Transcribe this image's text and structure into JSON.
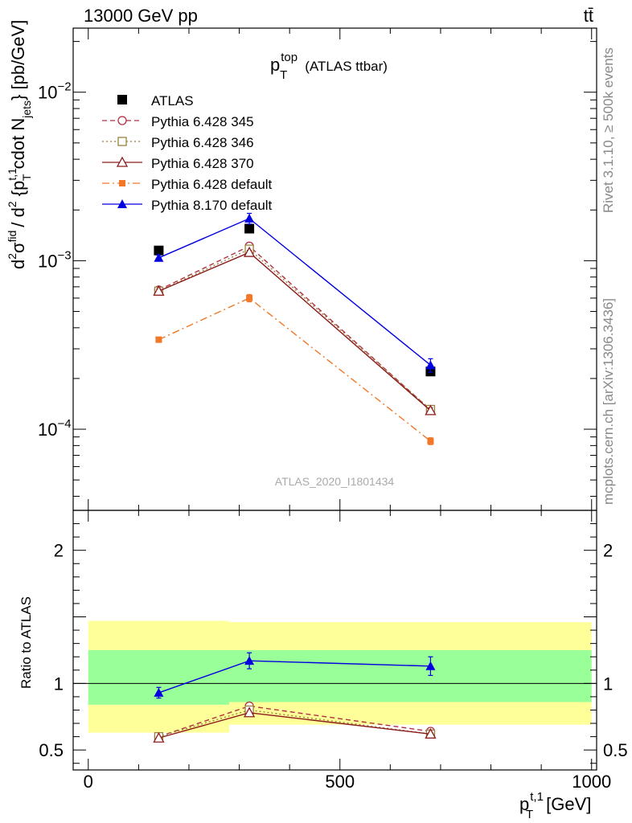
{
  "header": {
    "energy_label": "13000 GeV pp",
    "process_label": "tt̄"
  },
  "side_labels": {
    "rivet": "Rivet 3.1.10, ≥ 500k events",
    "site": "mcplots.cern.ch [arXiv:1306.3436]"
  },
  "chart_data": [
    {
      "type": "line",
      "panel": "main",
      "title": "p_T^top (ATLAS ttbar)",
      "title_main": "p",
      "title_sup": "top",
      "title_sub": "T",
      "title_rest": "(ATLAS ttbar)",
      "analysis_label": "ATLAS_2020_I1801434",
      "ylabel": "d²σ^fid / d² {p_T^t,1 cdot N_jets} [pb/GeV]",
      "yscale": "log",
      "xlim": [
        -30,
        1010
      ],
      "ylim": [
        3.3e-05,
        0.024
      ],
      "yticks": [
        0.0001,
        0.001,
        0.01
      ],
      "ytick_labels": [
        "10^-4",
        "10^-3",
        "10^-2"
      ],
      "ytick_label_parts": [
        {
          "base": "10",
          "exp": "−4"
        },
        {
          "base": "10",
          "exp": "−3"
        },
        {
          "base": "10",
          "exp": "−2"
        }
      ],
      "x": [
        140,
        320,
        680
      ],
      "series": [
        {
          "name": "ATLAS",
          "values": [
            0.00115,
            0.00155,
            0.00022
          ],
          "errors": [
            4e-05,
            5e-05,
            8e-06
          ],
          "color": "#000000",
          "marker": "filled-square",
          "line": "none"
        },
        {
          "name": "Pythia 6.428 345",
          "values": [
            0.00067,
            0.00122,
            0.00013
          ],
          "errors": [
            2e-05,
            3e-05,
            5e-06
          ],
          "color": "#b03040",
          "marker": "open-circle",
          "line": "dashed"
        },
        {
          "name": "Pythia 6.428 346",
          "values": [
            0.00066,
            0.00117,
            0.000131
          ],
          "errors": [
            2e-05,
            3e-05,
            5e-06
          ],
          "color": "#9a8040",
          "marker": "open-square",
          "line": "dotted"
        },
        {
          "name": "Pythia 6.428 370",
          "values": [
            0.00066,
            0.00112,
            0.000129
          ],
          "errors": [
            2e-05,
            3e-05,
            5e-06
          ],
          "color": "#8b1a1a",
          "marker": "open-triangle",
          "line": "solid"
        },
        {
          "name": "Pythia 6.428 default",
          "values": [
            0.00034,
            0.0006,
            8.5e-05
          ],
          "errors": [
            1e-05,
            3e-05,
            4e-06
          ],
          "color": "#f07828",
          "marker": "filled-square-small",
          "line": "dashdot"
        },
        {
          "name": "Pythia 8.170 default",
          "values": [
            0.00104,
            0.00178,
            0.00024
          ],
          "errors": [
            4e-05,
            0.00013,
            2.2e-05
          ],
          "color": "#0000e0",
          "marker": "filled-triangle",
          "line": "solid"
        }
      ],
      "legend_location": "top-left"
    },
    {
      "type": "line",
      "panel": "ratio",
      "ylabel": "Ratio to ATLAS",
      "xlabel": "p_T^t,1 [GeV]",
      "xlabel_main": "p",
      "xlabel_sup": "t,1",
      "xlabel_sub": "T",
      "xlabel_rest": "[GeV]",
      "xlim": [
        -30,
        1010
      ],
      "ylim": [
        0.35,
        2.3
      ],
      "xticks": [
        0,
        500,
        1000
      ],
      "xtick_labels": [
        "0",
        "500",
        "1000"
      ],
      "yticks": [
        0.5,
        1,
        2
      ],
      "ytick_labels": [
        "0.5",
        "1",
        "2"
      ],
      "bands": [
        {
          "x_range": [
            0,
            280
          ],
          "inner": [
            0.84,
            1.25
          ],
          "outer": [
            0.63,
            1.47
          ]
        },
        {
          "x_range": [
            280,
            1000
          ],
          "inner": [
            0.86,
            1.25
          ],
          "outer": [
            0.69,
            1.46
          ]
        }
      ],
      "x": [
        140,
        320,
        680
      ],
      "series": [
        {
          "name": "Pythia 6.428 345",
          "values": [
            0.6,
            0.83,
            0.64
          ],
          "errors": [
            0.01,
            0.01,
            0.01
          ],
          "color": "#b03040",
          "marker": "open-circle",
          "line": "dashed"
        },
        {
          "name": "Pythia 6.428 346",
          "values": [
            0.6,
            0.8,
            0.62
          ],
          "errors": [
            0.01,
            0.01,
            0.01
          ],
          "color": "#9a8040",
          "marker": "open-square",
          "line": "dotted"
        },
        {
          "name": "Pythia 6.428 370",
          "values": [
            0.59,
            0.78,
            0.62
          ],
          "errors": [
            0.01,
            0.01,
            0.01
          ],
          "color": "#8b1a1a",
          "marker": "open-triangle",
          "line": "solid"
        },
        {
          "name": "Pythia 8.170 default",
          "values": [
            0.93,
            1.17,
            1.13
          ],
          "errors": [
            0.04,
            0.06,
            0.07
          ],
          "color": "#0000e0",
          "marker": "filled-triangle",
          "line": "solid"
        }
      ]
    }
  ]
}
